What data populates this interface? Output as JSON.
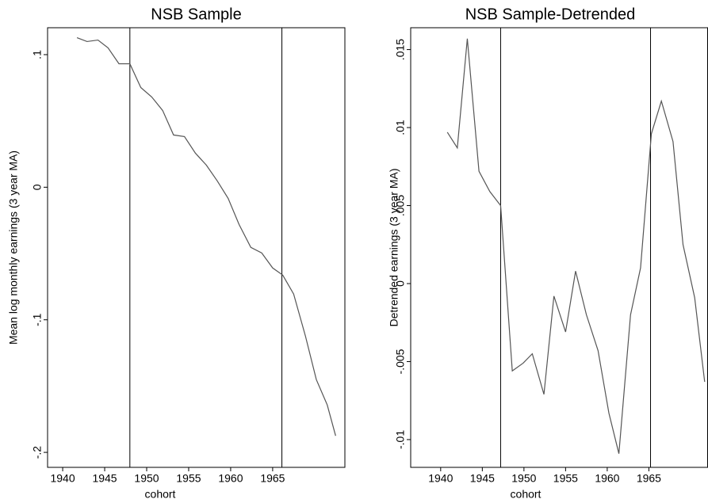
{
  "chart_data": [
    {
      "type": "line",
      "title": "NSB Sample",
      "x_label": "cohort",
      "y_label": "Mean log monthly earnings (3 year MA)",
      "x": [
        1941.7,
        1942.9,
        1944.2,
        1945.4,
        1946.7,
        1948.0,
        1949.3,
        1950.6,
        1951.9,
        1953.2,
        1954.5,
        1955.8,
        1957.1,
        1958.4,
        1959.7,
        1961.0,
        1962.4,
        1963.7,
        1965.0,
        1966.2,
        1967.5,
        1968.9,
        1970.2,
        1971.5,
        1972.5
      ],
      "series": [
        {
          "color": "#555555",
          "values": [
            0.1128,
            0.1099,
            0.111,
            0.1051,
            0.0931,
            0.0931,
            0.0752,
            0.0681,
            0.0579,
            0.0394,
            0.0382,
            0.0257,
            0.0167,
            0.0048,
            -0.0084,
            -0.0281,
            -0.0454,
            -0.0496,
            -0.0609,
            -0.0663,
            -0.0806,
            -0.1122,
            -0.1451,
            -0.1642,
            -0.1875
          ]
        }
      ],
      "vlines": [
        1948.0,
        1966.1
      ],
      "xlim": [
        1938.2,
        1973.6
      ],
      "xticks": [
        1940,
        1945,
        1950,
        1955,
        1960,
        1965
      ],
      "ylim": [
        -0.2113,
        0.1203
      ],
      "yticks": [
        {
          "value": -0.2,
          "label": "-.2"
        },
        {
          "value": -0.1,
          "label": "-.1"
        },
        0,
        {
          "value": 0.1,
          "label": ".1"
        }
      ],
      "grid": false
    },
    {
      "type": "line",
      "title": "NSB Sample-Detrended",
      "x_label": "cohort",
      "y_label": "Detrended earnings (3 year MA)",
      "x": [
        1940.8,
        1942.0,
        1943.2,
        1944.6,
        1945.9,
        1947.2,
        1948.6,
        1949.9,
        1951.0,
        1952.4,
        1953.6,
        1955.0,
        1956.2,
        1957.5,
        1958.9,
        1960.2,
        1961.4,
        1962.8,
        1964.0,
        1965.3,
        1966.5,
        1967.9,
        1969.1,
        1970.5,
        1971.7
      ],
      "series": [
        {
          "color": "#555555",
          "values": [
            0.0097,
            0.0087,
            0.0157,
            0.0072,
            0.0059,
            0.005,
            -0.0056,
            -0.0051,
            -0.0045,
            -0.0071,
            -0.0008,
            -0.0031,
            0.0008,
            -0.002,
            -0.0043,
            -0.0083,
            -0.0109,
            -0.002,
            0.001,
            0.0096,
            0.0117,
            0.0091,
            0.0025,
            -0.0009,
            -0.0063
          ]
        }
      ],
      "vlines": [
        1947.2,
        1965.2
      ],
      "xlim": [
        1936.4,
        1972.1
      ],
      "xticks": [
        1940,
        1945,
        1950,
        1955,
        1960,
        1965
      ],
      "ylim": [
        -0.01178,
        0.0164
      ],
      "yticks": [
        {
          "value": -0.01,
          "label": "-.01"
        },
        {
          "value": -0.005,
          "label": "-.005"
        },
        0,
        {
          "value": 0.005,
          "label": ".005"
        },
        {
          "value": 0.01,
          "label": ".01"
        },
        {
          "value": 0.015,
          "label": ".015"
        }
      ],
      "grid": false
    }
  ]
}
